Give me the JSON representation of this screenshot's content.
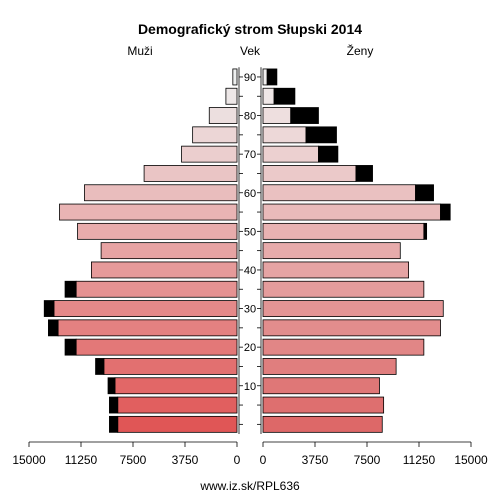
{
  "chart_data": {
    "type": "bar",
    "title": "Demografický strom Słupski 2014",
    "left_label": "Muži",
    "center_label": "Vek",
    "right_label": "Ženy",
    "footer": "www.iz.sk/RPL636",
    "xlim": [
      0,
      15000
    ],
    "x_ticks": [
      15000,
      11250,
      7500,
      3750,
      0,
      3750,
      7500,
      11250,
      15000
    ],
    "x_ticks_male": [
      15000,
      11250,
      7500,
      3750,
      0
    ],
    "x_ticks_female": [
      0,
      3750,
      7500,
      11250,
      15000
    ],
    "age_ticks": [
      "10",
      "20",
      "30",
      "40",
      "50",
      "60",
      "70",
      "80",
      "90"
    ],
    "age_groups": [
      "0-4",
      "5-9",
      "10-14",
      "15-19",
      "20-24",
      "25-29",
      "30-34",
      "35-39",
      "40-44",
      "45-49",
      "50-54",
      "55-59",
      "60-64",
      "65-69",
      "70-74",
      "75-79",
      "80-84",
      "85-89",
      "90+"
    ],
    "series": [
      {
        "name": "Muži",
        "values": [
          8600,
          8600,
          8800,
          9600,
          11600,
          12900,
          13200,
          11600,
          10500,
          9800,
          11500,
          12800,
          11000,
          6700,
          4000,
          3200,
          2000,
          800,
          300
        ],
        "excess": [
          600,
          600,
          500,
          600,
          800,
          700,
          700,
          800,
          0,
          0,
          0,
          0,
          0,
          0,
          0,
          0,
          0,
          0,
          0
        ]
      },
      {
        "name": "Ženy",
        "values": [
          8600,
          8700,
          8400,
          9600,
          11600,
          12800,
          13000,
          11600,
          10500,
          9900,
          11600,
          12800,
          11000,
          6700,
          4000,
          3100,
          2000,
          800,
          300
        ],
        "excess": [
          0,
          0,
          0,
          0,
          0,
          0,
          0,
          0,
          0,
          0,
          200,
          700,
          1300,
          1200,
          1400,
          2200,
          2000,
          1500,
          700
        ]
      }
    ],
    "colors": {
      "male_gradient": [
        "#e05656",
        "#eef0f0"
      ],
      "female_gradient": [
        "#dd6868",
        "#f0eeee"
      ],
      "excess": "#000000",
      "outline": "#000000"
    }
  }
}
